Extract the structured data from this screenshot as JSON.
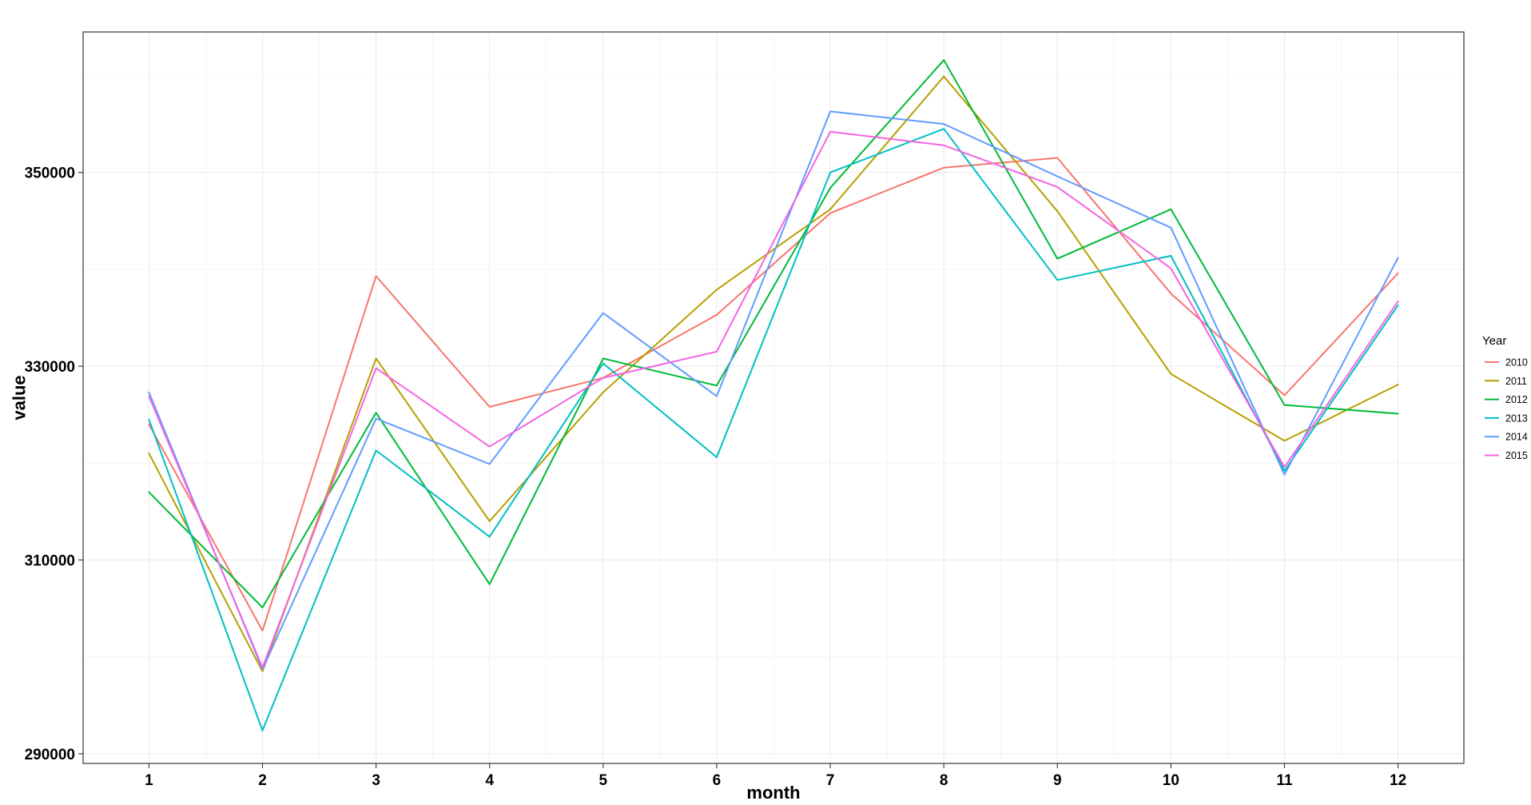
{
  "chart_data": {
    "type": "line",
    "xlabel": "month",
    "ylabel": "value",
    "x": [
      1,
      2,
      3,
      4,
      5,
      6,
      7,
      8,
      9,
      10,
      11,
      12
    ],
    "x_ticks": [
      1,
      2,
      3,
      4,
      5,
      6,
      7,
      8,
      9,
      10,
      11,
      12
    ],
    "xlim": [
      0.42,
      12.58
    ],
    "y_ticks": [
      290000,
      310000,
      330000,
      350000
    ],
    "ylim": [
      289000,
      364500
    ],
    "grid": true,
    "legend": {
      "title": "Year",
      "position": "right"
    },
    "series": [
      {
        "name": "2010",
        "color": "#F8766D",
        "values": [
          324000,
          302700,
          339300,
          325800,
          328800,
          335300,
          345800,
          350500,
          351500,
          337500,
          327000,
          339600
        ]
      },
      {
        "name": "2011",
        "color": "#B79F00",
        "values": [
          321000,
          298500,
          330800,
          314000,
          327300,
          337900,
          346200,
          359900,
          346000,
          329200,
          322300,
          328100
        ]
      },
      {
        "name": "2012",
        "color": "#00BA38",
        "values": [
          317000,
          305100,
          325200,
          307500,
          330800,
          328000,
          348400,
          361600,
          341100,
          346200,
          326000,
          325100
        ]
      },
      {
        "name": "2013",
        "color": "#00BFC4",
        "values": [
          324500,
          292400,
          321300,
          312400,
          330300,
          320600,
          350000,
          354500,
          338900,
          341400,
          319200,
          336300
        ]
      },
      {
        "name": "2014",
        "color": "#619CFF",
        "values": [
          327300,
          298700,
          324600,
          319900,
          335500,
          326900,
          356300,
          355000,
          349600,
          344300,
          318800,
          341200
        ]
      },
      {
        "name": "2015",
        "color": "#F564E3",
        "values": [
          326900,
          298900,
          329800,
          321700,
          328800,
          331500,
          354200,
          352800,
          348500,
          340100,
          319600,
          336700
        ]
      }
    ]
  }
}
